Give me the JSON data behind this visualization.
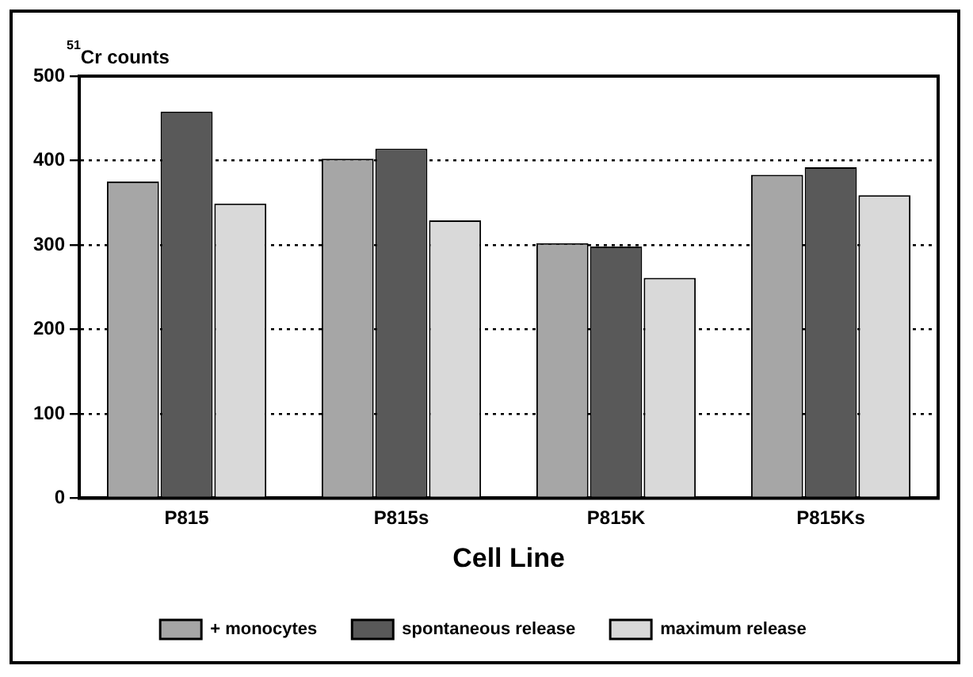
{
  "chart_data": {
    "type": "bar",
    "xlabel": "Cell Line",
    "ylabel": "$^{51}$Cr counts",
    "categories": [
      "P815",
      "P815s",
      "P815K",
      "P815Ks"
    ],
    "series": [
      {
        "name": "+ monocytes",
        "color": "#a6a6a6",
        "values": [
          375,
          402,
          302,
          383
        ]
      },
      {
        "name": "spontaneous release",
        "color": "#595959",
        "values": [
          458,
          414,
          298,
          392
        ]
      },
      {
        "name": "maximum release",
        "color": "#d9d9d9",
        "values": [
          349,
          329,
          261,
          359
        ]
      }
    ],
    "ylim": [
      0,
      500
    ],
    "yticks": [
      0,
      100,
      200,
      300,
      400,
      500
    ],
    "grid": "y",
    "legend": "bottom"
  }
}
